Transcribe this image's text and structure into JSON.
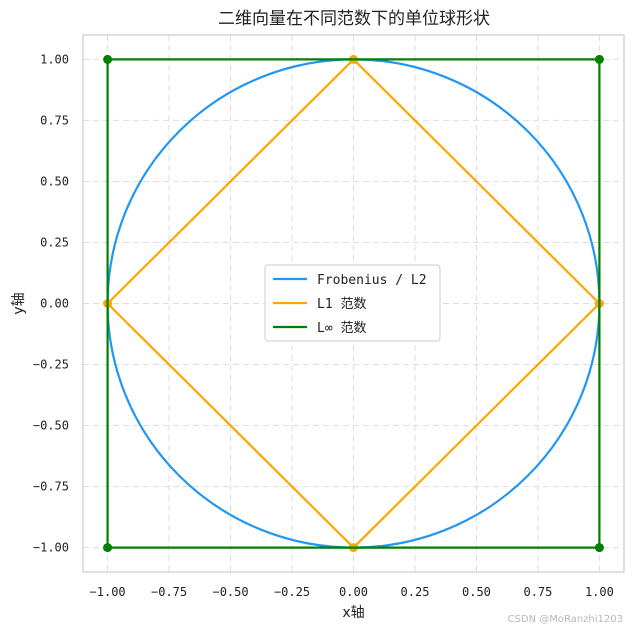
{
  "chart_data": {
    "type": "line",
    "title": "二维向量在不同范数下的单位球形状",
    "xlabel": "x轴",
    "ylabel": "y轴",
    "xlim": [
      -1.1,
      1.1
    ],
    "ylim": [
      -1.1,
      1.1
    ],
    "xticks": [
      -1.0,
      -0.75,
      -0.5,
      -0.25,
      0.0,
      0.25,
      0.5,
      0.75,
      1.0
    ],
    "yticks": [
      -1.0,
      -0.75,
      -0.5,
      -0.25,
      0.0,
      0.25,
      0.5,
      0.75,
      1.0
    ],
    "xtick_labels": [
      "−1.00",
      "−0.75",
      "−0.50",
      "−0.25",
      "0.00",
      "0.25",
      "0.50",
      "0.75",
      "1.00"
    ],
    "ytick_labels": [
      "−1.00",
      "−0.75",
      "−0.50",
      "−0.25",
      "0.00",
      "0.25",
      "0.50",
      "0.75",
      "1.00"
    ],
    "grid": true,
    "grid_style": "dashed",
    "legend_position": "center",
    "series": [
      {
        "name": "Frobenius / L2",
        "color": "#2196F3",
        "shape": "unit circle x^2 + y^2 = 1",
        "markers": false
      },
      {
        "name": "L1 范数",
        "color": "#FFA500",
        "x": [
          1,
          0,
          -1,
          0,
          1
        ],
        "y": [
          0,
          1,
          0,
          -1,
          0
        ],
        "markers": true
      },
      {
        "name": "L∞ 范数",
        "color": "#008000",
        "x": [
          1,
          1,
          -1,
          -1,
          1
        ],
        "y": [
          1,
          -1,
          -1,
          1,
          1
        ],
        "markers": true
      }
    ]
  },
  "watermark": "CSDN @MoRanzhi1203"
}
